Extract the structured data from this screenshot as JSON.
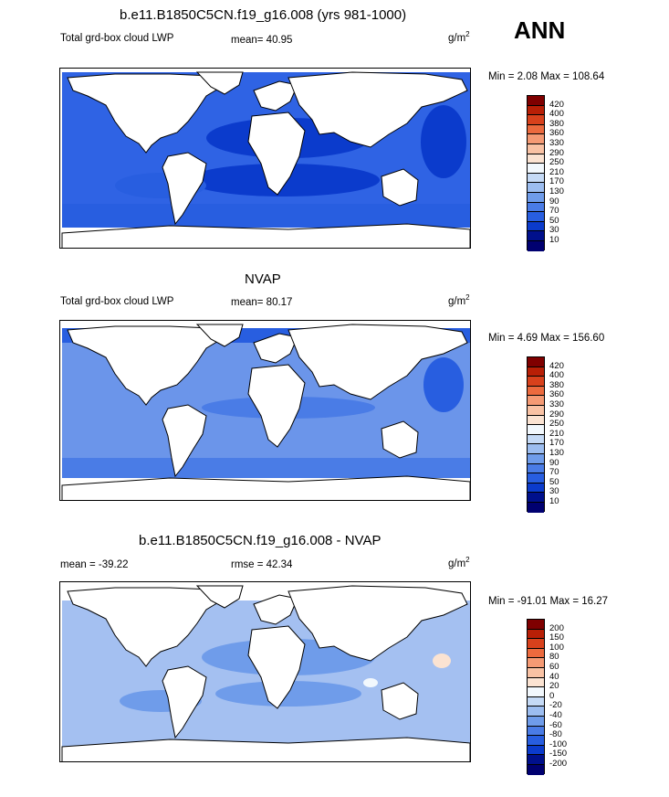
{
  "season": "ANN",
  "units_base": "g/m",
  "units_exp": "2",
  "panels": [
    {
      "title": "b.e11.B1850C5CN.f19_g16.008 (yrs 981-1000)",
      "left_label": "Total grd-box cloud LWP",
      "stat_label": "mean=  40.95",
      "minmax": "Min =   2.08 Max = 108.64",
      "levels": [
        "420",
        "400",
        "380",
        "360",
        "330",
        "290",
        "250",
        "210",
        "170",
        "130",
        "90",
        "70",
        "50",
        "30",
        "10"
      ]
    },
    {
      "title": "NVAP",
      "left_label": "Total grd-box cloud LWP",
      "stat_label": "mean=  80.17",
      "minmax": "Min =   4.69 Max = 156.60",
      "levels": [
        "420",
        "400",
        "380",
        "360",
        "330",
        "290",
        "250",
        "210",
        "170",
        "130",
        "90",
        "70",
        "50",
        "30",
        "10"
      ]
    },
    {
      "title": "b.e11.B1850C5CN.f19_g16.008 - NVAP",
      "left_label": "mean = -39.22",
      "stat_label": "rmse =  42.34",
      "minmax": "Min = -91.01 Max =  16.27",
      "levels": [
        "200",
        "150",
        "100",
        "80",
        "60",
        "40",
        "20",
        "0",
        "-20",
        "-40",
        "-60",
        "-80",
        "-100",
        "-150",
        "-200"
      ]
    }
  ],
  "colors": {
    "scale": [
      "#7f0000",
      "#b81f06",
      "#d8411c",
      "#ec6a3e",
      "#f59a74",
      "#f9c2a4",
      "#fbe3d2",
      "#f2f8fd",
      "#c5daf6",
      "#9cbdf0",
      "#6f9cea",
      "#4a7ce6",
      "#285ee0",
      "#0b3bcc",
      "#00108c",
      "#000070"
    ],
    "model_ocean": "#2f63e4",
    "nvap_ocean": "#6b95ea",
    "diff_ocean": "#a4c0f1"
  }
}
